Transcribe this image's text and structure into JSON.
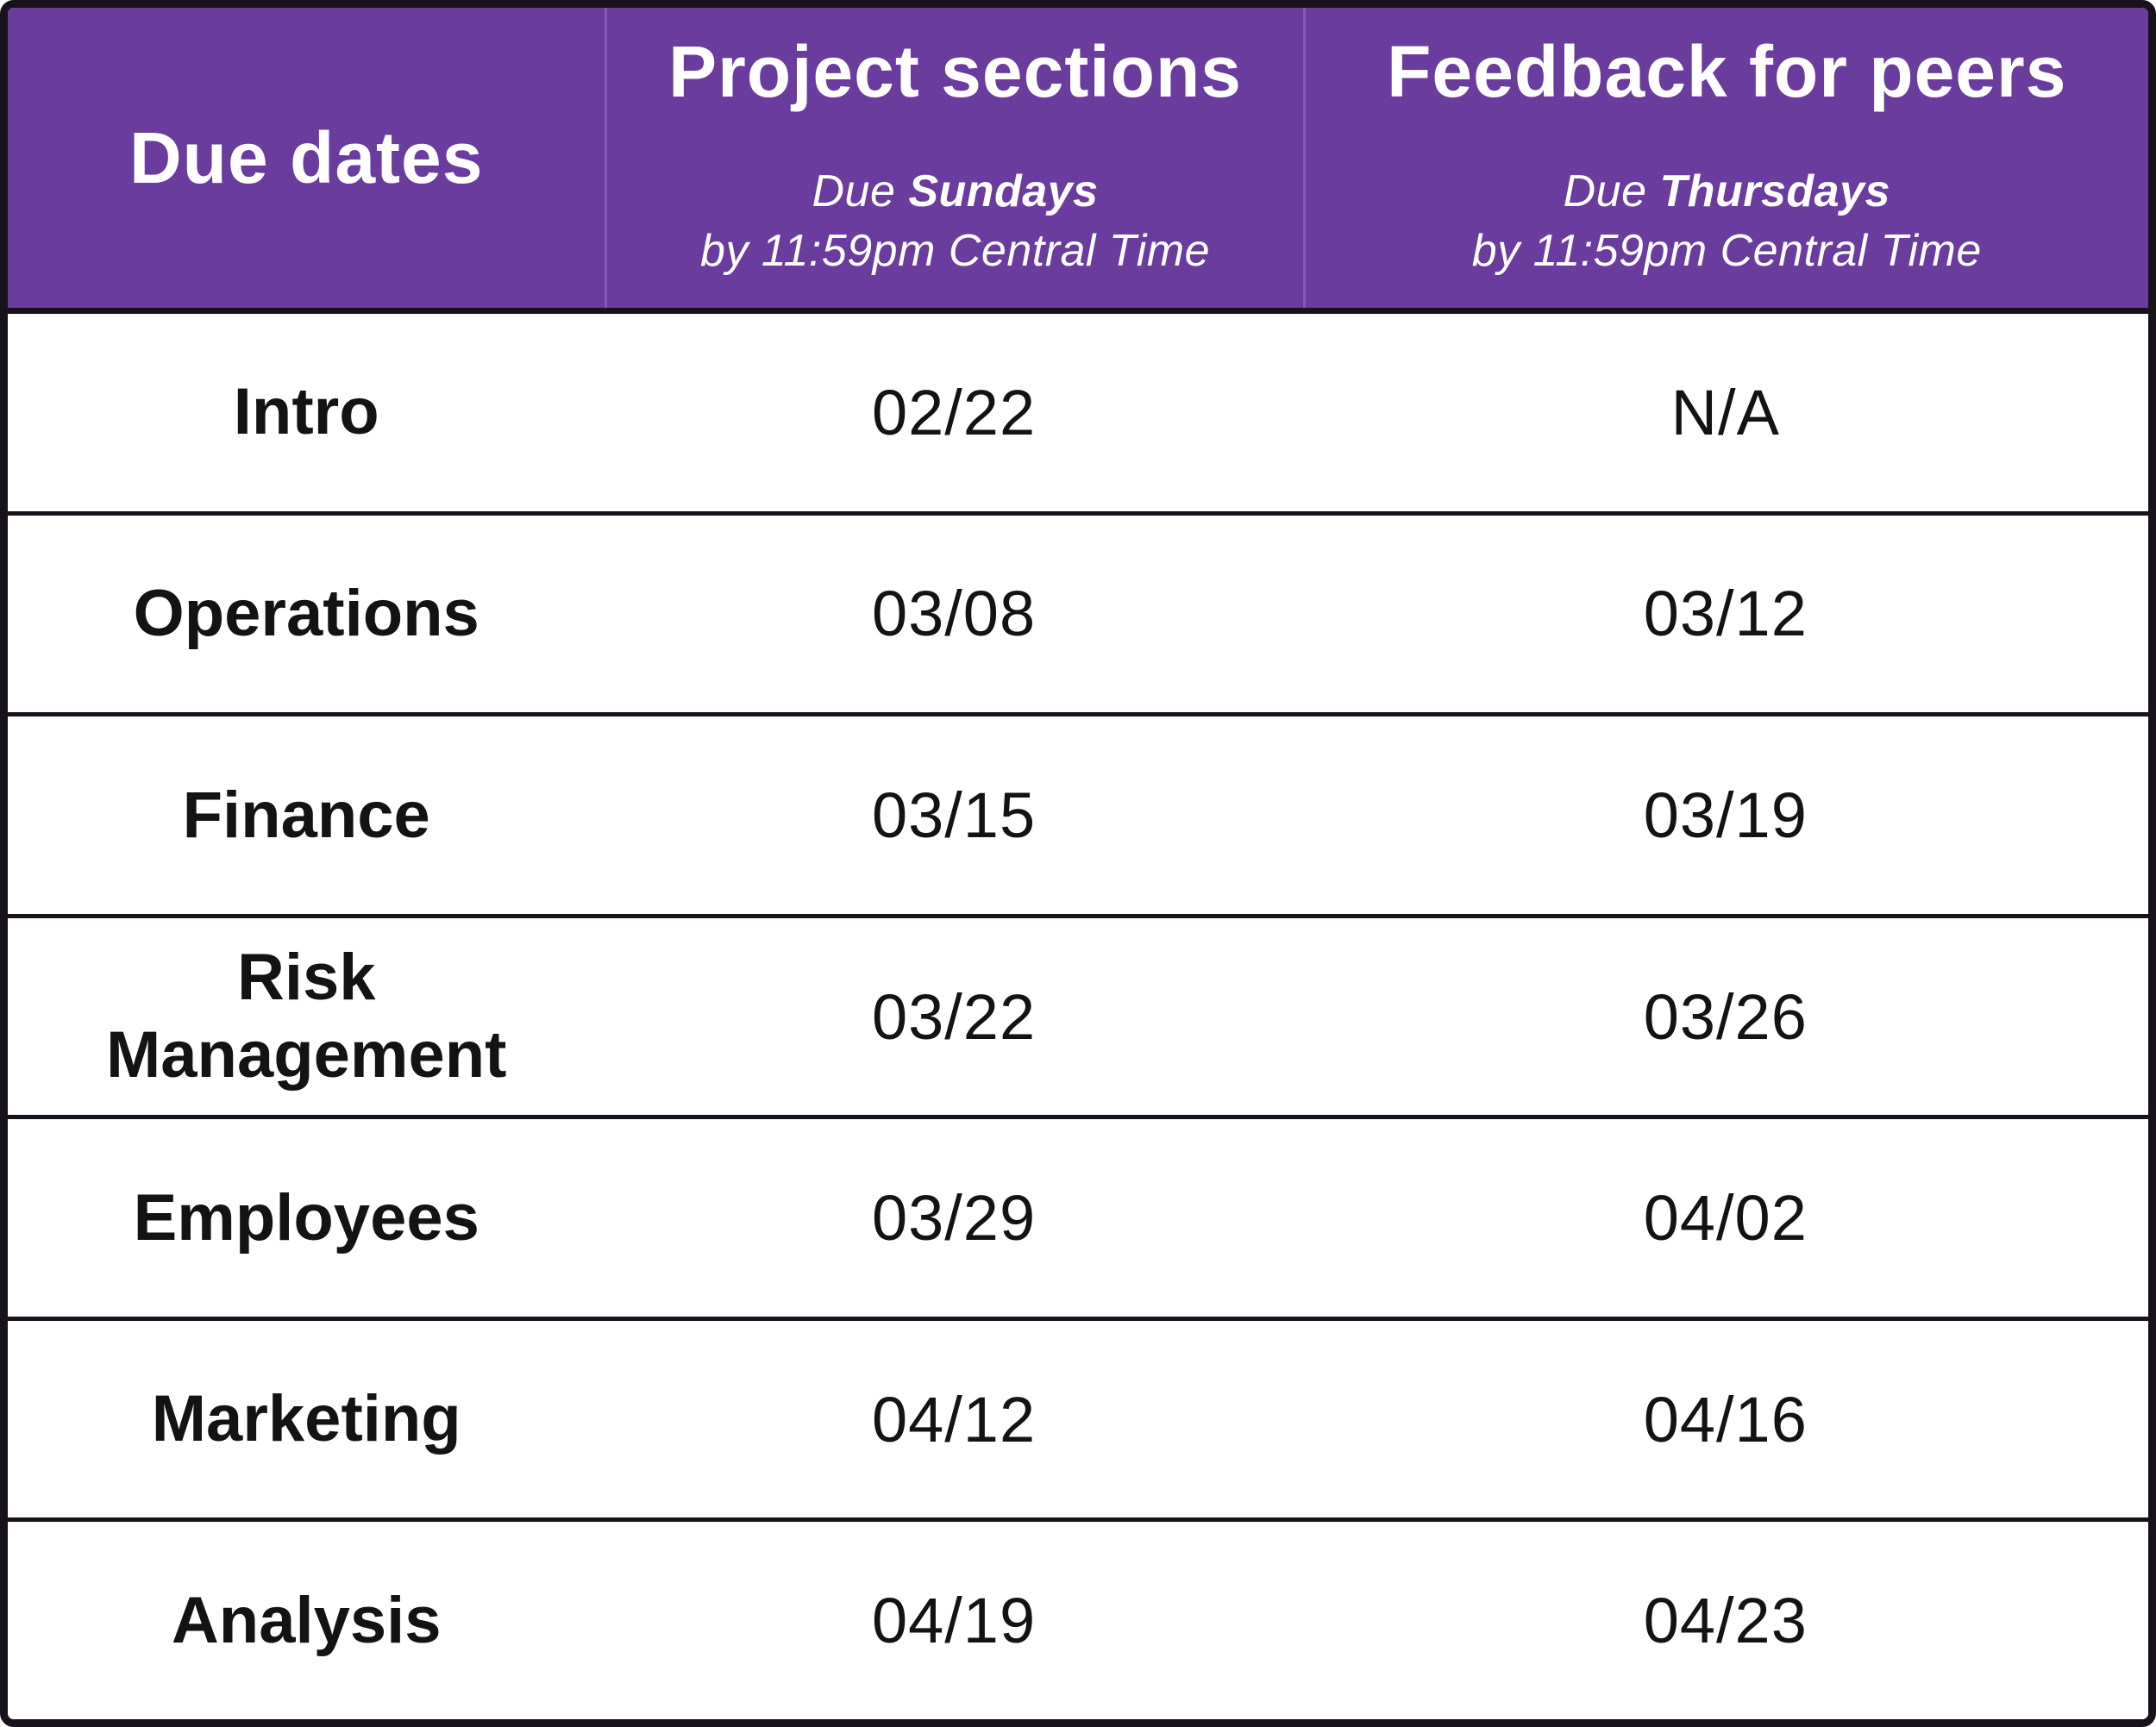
{
  "table": {
    "header": {
      "due_dates": {
        "title": "Due dates"
      },
      "project": {
        "title": "Project sections",
        "due_prefix": "Due ",
        "due_day": "Sundays",
        "due_time": "by 11:59pm Central Time"
      },
      "feedback": {
        "title": "Feedback for peers",
        "due_prefix": "Due ",
        "due_day": "Thursdays",
        "due_time": "by 11:59pm Central Time"
      }
    },
    "rows": [
      {
        "label": "Intro",
        "project_due": "02/22",
        "feedback_due": "N/A"
      },
      {
        "label": "Operations",
        "project_due": "03/08",
        "feedback_due": "03/12"
      },
      {
        "label": "Finance",
        "project_due": "03/15",
        "feedback_due": "03/19"
      },
      {
        "label": "Risk Management",
        "project_due": "03/22",
        "feedback_due": "03/26"
      },
      {
        "label": "Employees",
        "project_due": "03/29",
        "feedback_due": "04/02"
      },
      {
        "label": "Marketing",
        "project_due": "04/12",
        "feedback_due": "04/16"
      },
      {
        "label": "Analysis",
        "project_due": "04/19",
        "feedback_due": "04/23"
      }
    ],
    "colors": {
      "header_bg": "#693C9D",
      "header_text": "#FFFFFF",
      "header_divider": "#8159B8",
      "body_text": "#131313",
      "border": "#17121C",
      "body_bg": "#FFFFFF"
    }
  }
}
